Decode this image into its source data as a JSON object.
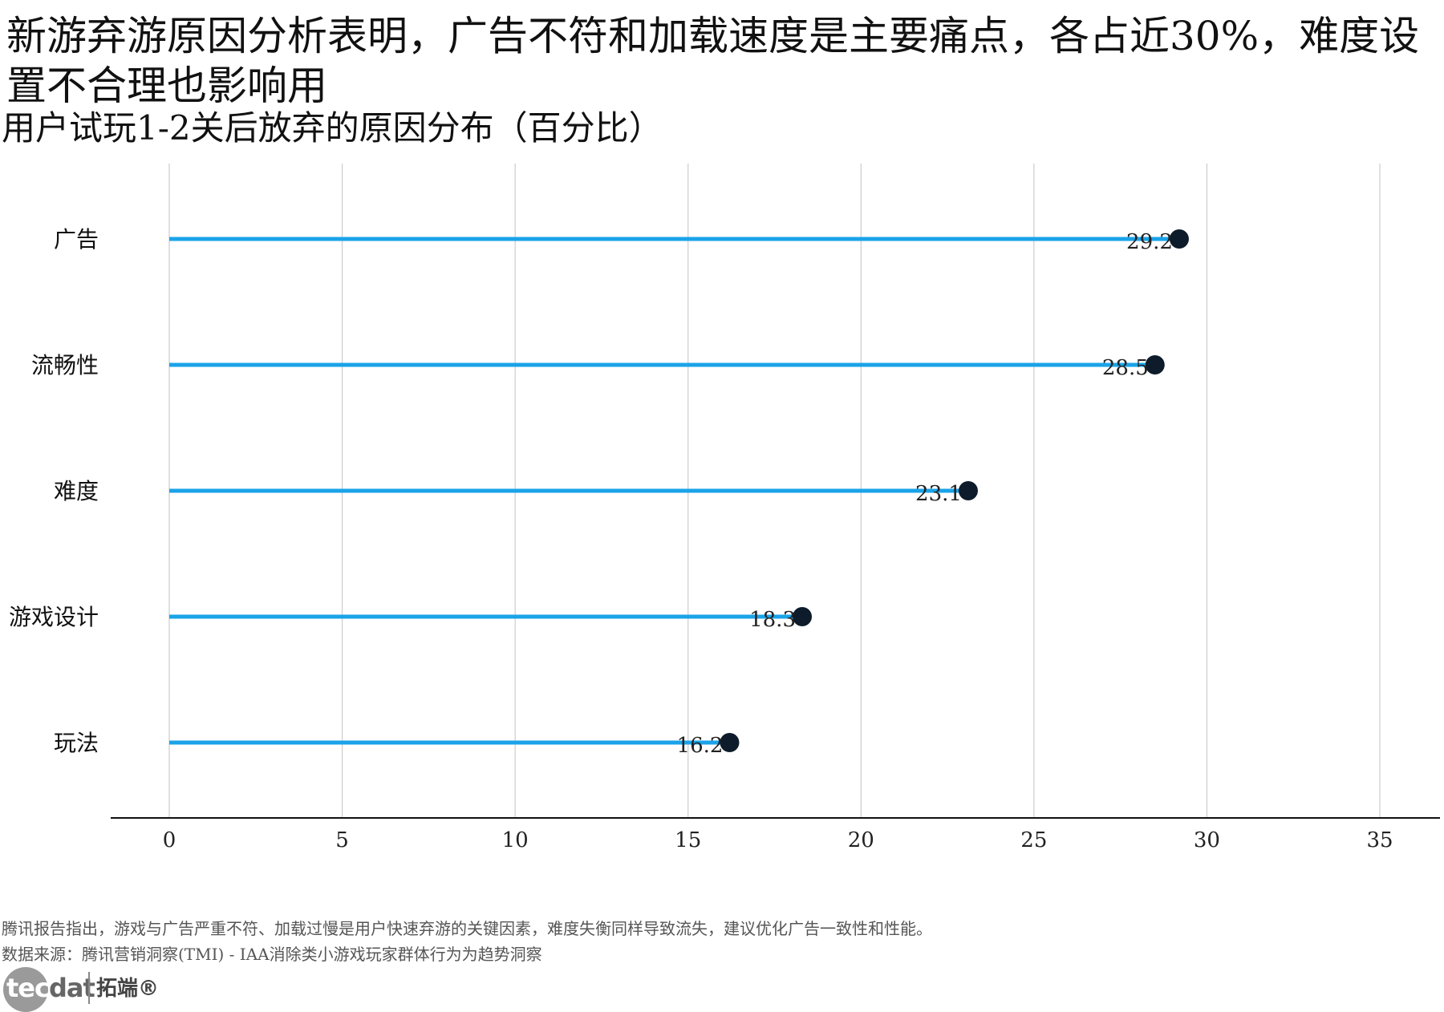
{
  "title": "新游弃游原因分析表明，广告不符和加载速度是主要痛点，各占近30%，难度设置不合理也影响用",
  "subtitle": "用户试玩1-2关后放弃的原因分布（百分比）",
  "footnote": "腾讯报告指出，游戏与广告严重不符、加载过慢是用户快速弃游的关键因素，难度失衡同样导致流失，建议优化广告一致性和性能。",
  "source": "数据来源：腾讯营销洞察(TMI) - IAA消除类小游戏玩家群体行为为趋势洞察",
  "logo": {
    "en_part1": "tec",
    "en_part2": "dat",
    "cn": "拓端®"
  },
  "colors": {
    "stem": "#1aa3e8",
    "dot": "#0d1b2a",
    "grid": "#cccccc",
    "axis": "#111111"
  },
  "chart_data": {
    "type": "lollipop",
    "categories": [
      "广告",
      "流畅性",
      "难度",
      "游戏设计",
      "玩法"
    ],
    "values": [
      29.2,
      28.5,
      23.1,
      18.3,
      16.2
    ],
    "value_labels": [
      "29.2",
      "28.5",
      "23.1",
      "18.3",
      "16.2"
    ],
    "xlim": [
      0,
      35
    ],
    "xticks": [
      0,
      5,
      10,
      15,
      20,
      25,
      30,
      35
    ],
    "grid": "vertical",
    "orientation": "horizontal"
  }
}
